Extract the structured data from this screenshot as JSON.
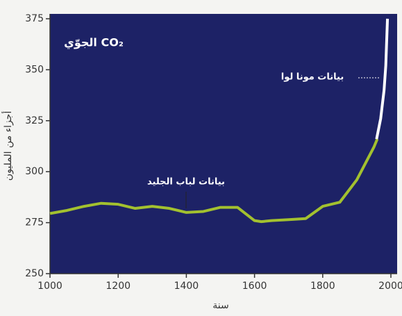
{
  "chart_data": {
    "type": "line",
    "title": "CO₂ الجوّي",
    "xlabel": "سنة",
    "ylabel": "أجزاء من المليون",
    "series": [
      {
        "name": "بيانات لباب الجليد",
        "color": "#a3c12f",
        "x": [
          1000,
          1050,
          1100,
          1150,
          1200,
          1250,
          1300,
          1350,
          1400,
          1450,
          1500,
          1550,
          1600,
          1620,
          1650,
          1700,
          1750,
          1800,
          1850,
          1900,
          1950,
          1960
        ],
        "values": [
          279.5,
          281,
          283,
          284.5,
          284,
          282,
          283,
          282,
          280,
          280.5,
          282.5,
          282.5,
          276,
          275.5,
          276,
          276.5,
          277,
          283,
          285,
          296,
          312,
          316
        ]
      },
      {
        "name": "بيانات مونا لوا",
        "color": "#ffffff",
        "x": [
          1958,
          1970,
          1980,
          1985,
          1990
        ],
        "values": [
          316,
          326,
          340,
          352,
          375
        ]
      }
    ],
    "xlim": [
      1000,
      2000
    ],
    "xticks": [
      1000,
      1200,
      1400,
      1600,
      1800,
      2000
    ],
    "ylim": [
      250,
      375
    ],
    "yticks": [
      250,
      275,
      300,
      325,
      350,
      375
    ]
  }
}
